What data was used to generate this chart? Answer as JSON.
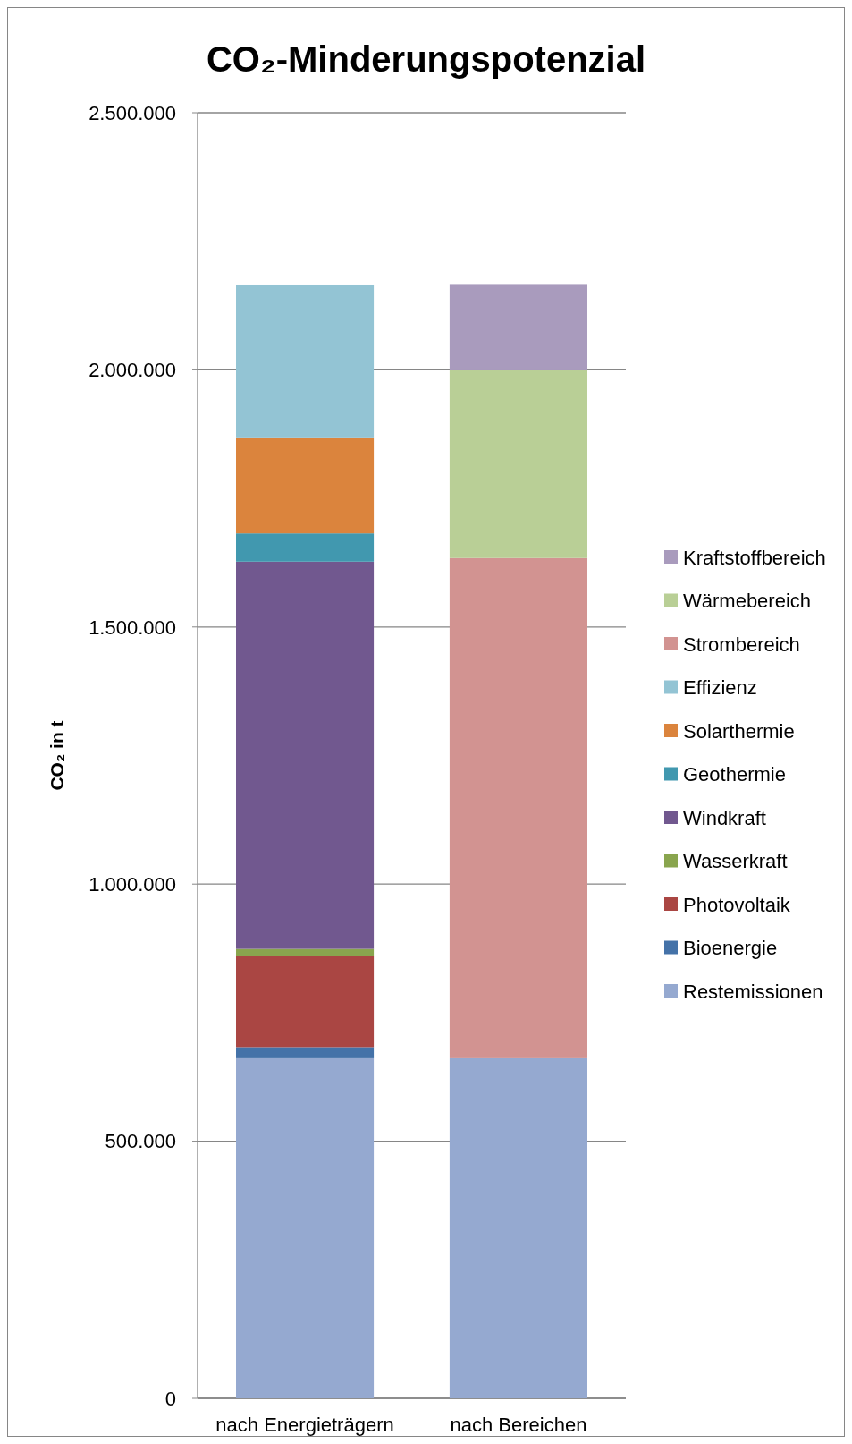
{
  "chart_data": {
    "type": "bar",
    "title": "CO₂-Minderungspotenzial",
    "ylabel": "CO₂ in t",
    "categories": [
      "nach Energieträgern",
      "nach Bereichen"
    ],
    "stacked": true,
    "series": [
      {
        "name": "Restemissionen",
        "color": "#95a9d0",
        "values": [
          663000,
          663000
        ]
      },
      {
        "name": "Bioenergie",
        "color": "#4472a8",
        "values": [
          20000,
          null
        ]
      },
      {
        "name": "Photovoltaik",
        "color": "#aa4643",
        "values": [
          177000,
          null
        ]
      },
      {
        "name": "Wasserkraft",
        "color": "#89a54e",
        "values": [
          14000,
          null
        ]
      },
      {
        "name": "Windkraft",
        "color": "#71588f",
        "values": [
          753000,
          null
        ]
      },
      {
        "name": "Geothermie",
        "color": "#4198af",
        "values": [
          55000,
          null
        ]
      },
      {
        "name": "Solarthermie",
        "color": "#db843d",
        "values": [
          185000,
          null
        ]
      },
      {
        "name": "Effizienz",
        "color": "#93c4d4",
        "values": [
          299000,
          null
        ]
      },
      {
        "name": "Strombereich",
        "color": "#d29391",
        "values": [
          null,
          971000
        ]
      },
      {
        "name": "Wärmebereich",
        "color": "#b9cf96",
        "values": [
          null,
          365000
        ]
      },
      {
        "name": "Kraftstoffbereich",
        "color": "#a99bbd",
        "values": [
          null,
          168000
        ]
      }
    ],
    "ylim": [
      0,
      2500000
    ],
    "yticks": [
      {
        "value": 0,
        "label": "0"
      },
      {
        "value": 500000,
        "label": "500.000"
      },
      {
        "value": 1000000,
        "label": "1.000.000"
      },
      {
        "value": 1500000,
        "label": "1.500.000"
      },
      {
        "value": 2000000,
        "label": "2.000.000"
      },
      {
        "value": 2500000,
        "label": "2.500.000"
      }
    ],
    "grid": "y",
    "legend": "right"
  }
}
